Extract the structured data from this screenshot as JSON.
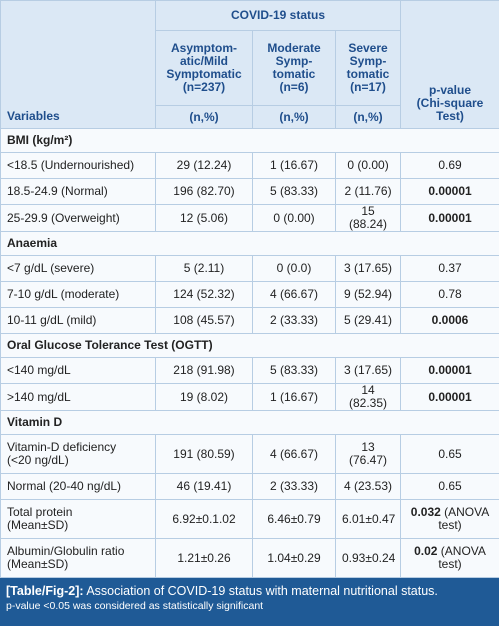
{
  "header": {
    "variables": "Variables",
    "group": "COVID-19 status",
    "columns": [
      {
        "lines": [
          "Asymptom-",
          "atic/Mild",
          "Symptomatic",
          "(n=237)"
        ],
        "unit": "(n,%)"
      },
      {
        "lines": [
          "Moderate",
          "Symp-",
          "tomatic",
          "(n=6)"
        ],
        "unit": "(n,%)"
      },
      {
        "lines": [
          "Severe",
          "Symp-",
          "tomatic",
          "(n=17)"
        ],
        "unit": "(n,%)"
      }
    ],
    "p_value": [
      "p-value",
      "(Chi-square",
      "Test)"
    ]
  },
  "sections": [
    {
      "title": "BMI (kg/m²)",
      "rows": [
        {
          "label": [
            "<18.5 (Undernourished)"
          ],
          "cells": [
            "29 (12.24)",
            "1 (16.67)",
            "0 (0.00)"
          ],
          "p": "0.69",
          "p_bold": false
        },
        {
          "label": [
            "18.5-24.9 (Normal)"
          ],
          "cells": [
            "196 (82.70)",
            "5 (83.33)",
            "2 (11.76)"
          ],
          "p": "0.00001",
          "p_bold": true
        },
        {
          "label": [
            "25-29.9 (Overweight)"
          ],
          "cells": [
            "12 (5.06)",
            "0 (0.00)",
            "15 (88.24)"
          ],
          "p": "0.00001",
          "p_bold": true
        }
      ]
    },
    {
      "title": "Anaemia",
      "rows": [
        {
          "label": [
            "<7 g/dL (severe)"
          ],
          "cells": [
            "5 (2.11)",
            "0 (0.0)",
            "3 (17.65)"
          ],
          "p": "0.37",
          "p_bold": false
        },
        {
          "label": [
            "7-10 g/dL (moderate)"
          ],
          "cells": [
            "124 (52.32)",
            "4 (66.67)",
            "9 (52.94)"
          ],
          "p": "0.78",
          "p_bold": false
        },
        {
          "label": [
            "10-11 g/dL (mild)"
          ],
          "cells": [
            "108 (45.57)",
            "2 (33.33)",
            "5 (29.41)"
          ],
          "p": "0.0006",
          "p_bold": true
        }
      ]
    },
    {
      "title": "Oral Glucose Tolerance Test (OGTT)",
      "rows": [
        {
          "label": [
            "<140 mg/dL"
          ],
          "cells": [
            "218 (91.98)",
            "5 (83.33)",
            "3 (17.65)"
          ],
          "p": "0.00001",
          "p_bold": true
        },
        {
          "label": [
            ">140 mg/dL"
          ],
          "cells": [
            "19 (8.02)",
            "1 (16.67)",
            "14 (82.35)"
          ],
          "p": "0.00001",
          "p_bold": true
        }
      ]
    },
    {
      "title": "Vitamin D",
      "rows": [
        {
          "label": [
            "Vitamin-D deficiency",
            "(<20 ng/dL)"
          ],
          "cells": [
            "191 (80.59)",
            "4 (66.67)",
            "13 (76.47)"
          ],
          "p": "0.65",
          "p_bold": false
        },
        {
          "label": [
            "Normal (20-40 ng/dL)"
          ],
          "cells": [
            "46 (19.41)",
            "2 (33.33)",
            "4 (23.53)"
          ],
          "p": "0.65",
          "p_bold": false
        }
      ]
    }
  ],
  "summary_rows": [
    {
      "label": [
        "Total protein",
        "(Mean±SD)"
      ],
      "cells": [
        "6.92±0.1.02",
        "6.46±0.79",
        "6.01±0.47"
      ],
      "p": "0.032",
      "p_note": "(ANOVA test)",
      "p_bold": true
    },
    {
      "label": [
        "Albumin/Globulin ratio",
        "(Mean±SD)"
      ],
      "cells": [
        "1.21±0.26",
        "1.04±0.29",
        "0.93±0.24"
      ],
      "p": "0.02",
      "p_note": "(ANOVA test)",
      "p_bold": true
    }
  ],
  "caption": {
    "label": "[Table/Fig-2]:",
    "text": "Association of COVID-19 status with maternal nutritional status.",
    "note": "p-value <0.05 was considered as statistically significant"
  }
}
